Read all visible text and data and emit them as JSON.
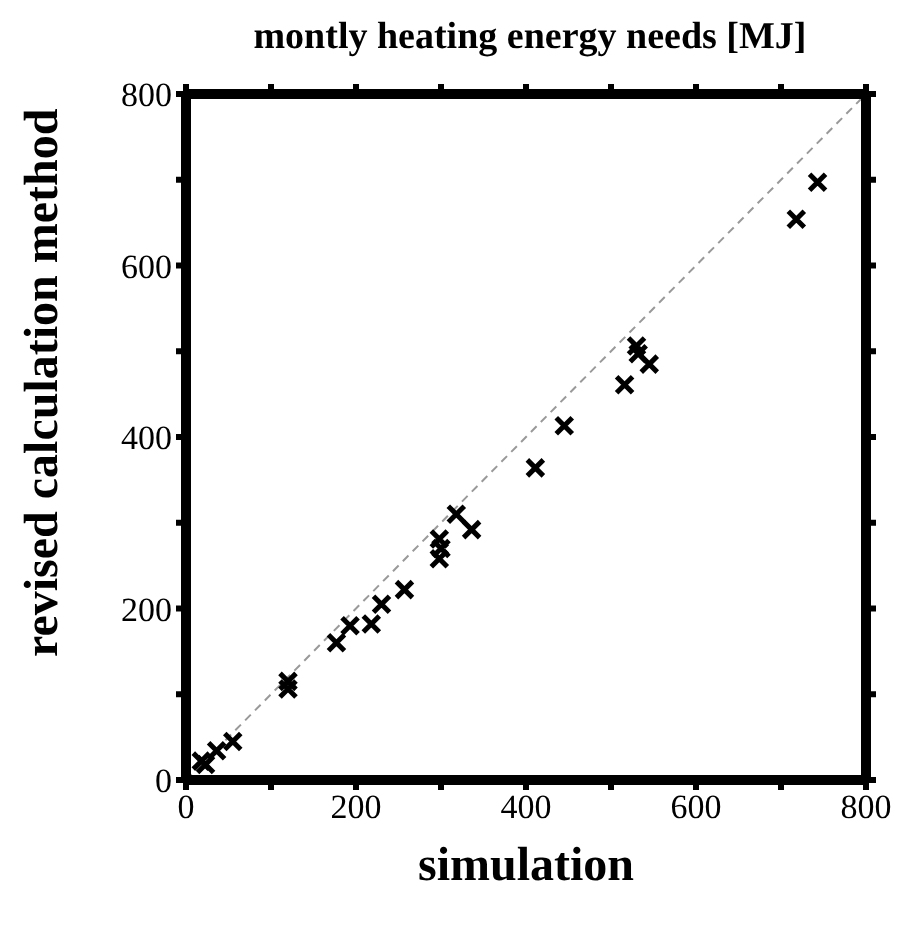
{
  "chart_data": {
    "type": "scatter",
    "title": "montly heating energy needs [MJ]",
    "xlabel": "simulation",
    "ylabel": "revised calculation method",
    "xlim": [
      0,
      800
    ],
    "ylim": [
      0,
      800
    ],
    "xticks": [
      0,
      {
        "value": 100,
        "label": null
      },
      200,
      {
        "value": 300,
        "label": null
      },
      400,
      {
        "value": 500,
        "label": null
      },
      600,
      {
        "value": 700,
        "label": null
      },
      800
    ],
    "yticks": [
      0,
      {
        "value": 100,
        "label": null
      },
      200,
      {
        "value": 300,
        "label": null
      },
      400,
      {
        "value": 500,
        "label": null
      },
      600,
      {
        "value": 700,
        "label": null
      },
      800
    ],
    "grid": false,
    "legend": false,
    "marker": "cross",
    "series": [
      {
        "color": "#000000",
        "x": [
          23,
          18,
          36,
          55,
          120,
          120,
          177,
          193,
          218,
          230,
          257,
          298,
          300,
          298,
          318,
          336,
          411,
          445,
          516,
          530,
          532,
          545,
          718,
          743
        ],
        "values": [
          18,
          22,
          34,
          45,
          115,
          106,
          160,
          180,
          182,
          205,
          222,
          281,
          270,
          258,
          310,
          292,
          364,
          413,
          461,
          506,
          497,
          485,
          654,
          697
        ]
      },
      {
        "type": "line",
        "color": "#999999",
        "line_style": "dashed",
        "marker": "none",
        "x": [
          0,
          800
        ],
        "values": [
          0,
          800
        ]
      }
    ]
  }
}
